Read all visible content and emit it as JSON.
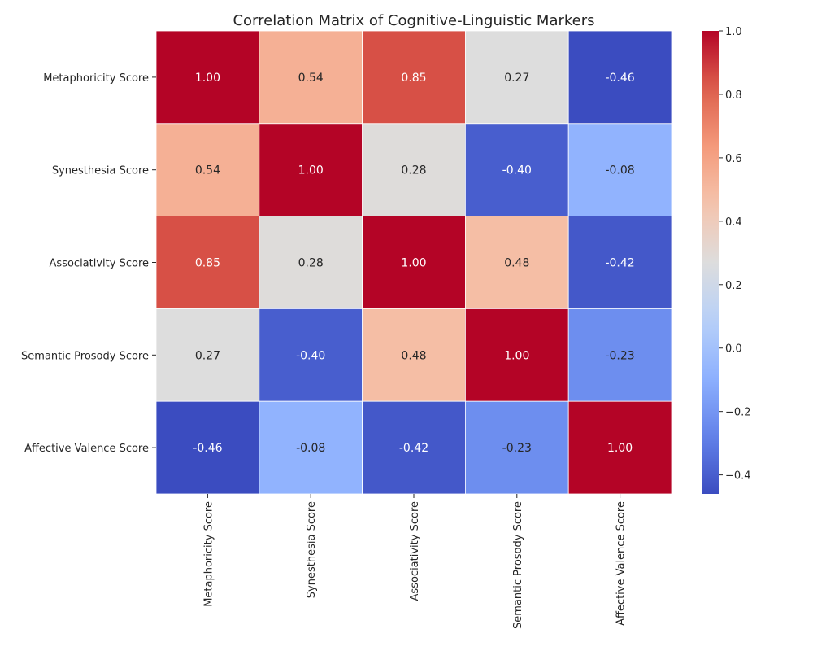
{
  "chart_data": {
    "type": "heatmap",
    "title": "Correlation Matrix of Cognitive-Linguistic Markers",
    "xlabel": "",
    "ylabel": "",
    "row_labels": [
      "Metaphoricity Score",
      "Synesthesia Score",
      "Associativity Score",
      "Semantic Prosody Score",
      "Affective Valence Score"
    ],
    "col_labels": [
      "Metaphoricity Score",
      "Synesthesia Score",
      "Associativity Score",
      "Semantic Prosody Score",
      "Affective Valence Score"
    ],
    "values": [
      [
        1.0,
        0.54,
        0.85,
        0.27,
        -0.46
      ],
      [
        0.54,
        1.0,
        0.28,
        -0.4,
        -0.08
      ],
      [
        0.85,
        0.28,
        1.0,
        0.48,
        -0.42
      ],
      [
        0.27,
        -0.4,
        0.48,
        1.0,
        -0.23
      ],
      [
        -0.46,
        -0.08,
        -0.42,
        -0.23,
        1.0
      ]
    ],
    "colormap": "coolwarm",
    "color_range": [
      -0.46,
      1.0
    ],
    "colorbar_ticks": [
      "1.0",
      "0.8",
      "0.6",
      "0.4",
      "0.2",
      "0.0",
      "−0.2",
      "−0.4"
    ],
    "colorbar_tick_values": [
      1.0,
      0.8,
      0.6,
      0.4,
      0.2,
      0.0,
      -0.2,
      -0.4
    ],
    "annotations_format": "0.00",
    "grid_line_color": "#ffffff"
  }
}
